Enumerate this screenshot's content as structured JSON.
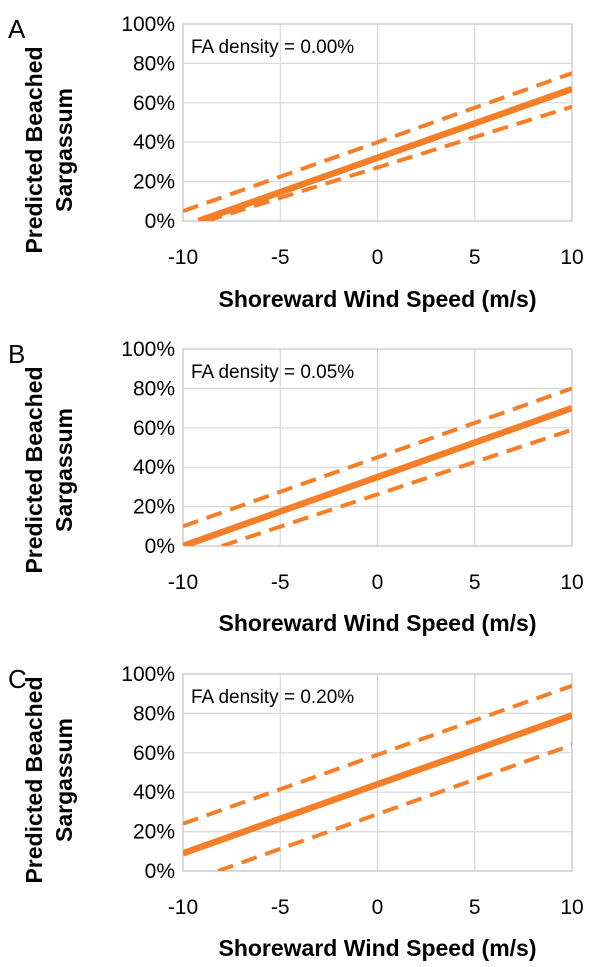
{
  "colors": {
    "line": "#F47F28",
    "grid": "#D9D9D9",
    "frame": "#C8C8C8"
  },
  "chart_data": [
    {
      "type": "line",
      "panel_label": "A",
      "annotation": "FA density = 0.00%",
      "xlabel": "Shoreward Wind Speed (m/s)",
      "ylabel": [
        "Predicted Beached",
        "Sargassum"
      ],
      "xlim": [
        -10,
        10
      ],
      "ylim": [
        0,
        100
      ],
      "xticks": [
        -10,
        -5,
        0,
        5,
        10
      ],
      "yticks": [
        0,
        20,
        40,
        60,
        80,
        100
      ],
      "xtick_labels": [
        "-10",
        "-5",
        "0",
        "5",
        "10"
      ],
      "ytick_labels": [
        "0%",
        "20%",
        "40%",
        "60%",
        "80%",
        "100%"
      ],
      "grid": true,
      "series": [
        {
          "style": "solid",
          "x": [
            -9.2,
            10
          ],
          "y": [
            0,
            67
          ]
        },
        {
          "style": "dashed",
          "x": [
            -10,
            10
          ],
          "y": [
            5,
            75
          ]
        },
        {
          "style": "dashed",
          "x": [
            -8.8,
            10
          ],
          "y": [
            0,
            58
          ]
        }
      ]
    },
    {
      "type": "line",
      "panel_label": "B",
      "annotation": "FA density = 0.05%",
      "xlabel": "Shoreward Wind Speed (m/s)",
      "ylabel": [
        "Predicted Beached",
        "Sargassum"
      ],
      "xlim": [
        -10,
        10
      ],
      "ylim": [
        0,
        100
      ],
      "xticks": [
        -10,
        -5,
        0,
        5,
        10
      ],
      "yticks": [
        0,
        20,
        40,
        60,
        80,
        100
      ],
      "xtick_labels": [
        "-10",
        "-5",
        "0",
        "5",
        "10"
      ],
      "ytick_labels": [
        "0%",
        "20%",
        "40%",
        "60%",
        "80%",
        "100%"
      ],
      "grid": true,
      "series": [
        {
          "style": "solid",
          "x": [
            -10,
            10
          ],
          "y": [
            0,
            70
          ]
        },
        {
          "style": "dashed",
          "x": [
            -10,
            10
          ],
          "y": [
            10,
            80
          ]
        },
        {
          "style": "dashed",
          "x": [
            -8,
            10
          ],
          "y": [
            0,
            59
          ]
        }
      ]
    },
    {
      "type": "line",
      "panel_label": "C",
      "annotation": "FA density = 0.20%",
      "xlabel": "Shoreward Wind Speed (m/s)",
      "ylabel": [
        "Predicted Beached",
        "Sargassum"
      ],
      "xlim": [
        -10,
        10
      ],
      "ylim": [
        0,
        100
      ],
      "xticks": [
        -10,
        -5,
        0,
        5,
        10
      ],
      "yticks": [
        0,
        20,
        40,
        60,
        80,
        100
      ],
      "xtick_labels": [
        "-10",
        "-5",
        "0",
        "5",
        "10"
      ],
      "ytick_labels": [
        "0%",
        "20%",
        "40%",
        "60%",
        "80%",
        "100%"
      ],
      "grid": true,
      "series": [
        {
          "style": "solid",
          "x": [
            -10,
            10
          ],
          "y": [
            9,
            79
          ]
        },
        {
          "style": "dashed",
          "x": [
            -10,
            10
          ],
          "y": [
            24,
            94
          ]
        },
        {
          "style": "dashed",
          "x": [
            -8.2,
            10
          ],
          "y": [
            0,
            64
          ]
        }
      ]
    }
  ]
}
